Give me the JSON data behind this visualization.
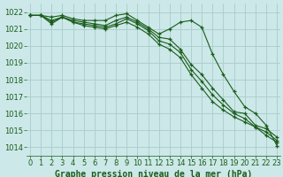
{
  "background_color": "#cce8e8",
  "grid_color": "#aacccc",
  "line_color": "#1a5c1a",
  "title": "Graphe pression niveau de la mer (hPa)",
  "title_fontsize": 7,
  "tick_fontsize": 6,
  "ylim": [
    1013.5,
    1022.5
  ],
  "xlim": [
    -0.3,
    23.3
  ],
  "yticks": [
    1014,
    1015,
    1016,
    1017,
    1018,
    1019,
    1020,
    1021,
    1022
  ],
  "xticks": [
    0,
    1,
    2,
    3,
    4,
    5,
    6,
    7,
    8,
    9,
    10,
    11,
    12,
    13,
    14,
    15,
    16,
    17,
    18,
    19,
    20,
    21,
    22,
    23
  ],
  "series": [
    [
      1021.8,
      1021.8,
      1021.7,
      1021.8,
      1021.6,
      1021.5,
      1021.5,
      1021.5,
      1021.8,
      1021.9,
      1021.5,
      1021.1,
      1020.7,
      1021.0,
      1021.4,
      1021.5,
      1021.1,
      1019.5,
      1018.3,
      1017.3,
      1016.4,
      1016.0,
      1015.3,
      1014.1
    ],
    [
      1021.8,
      1021.8,
      1021.4,
      1021.7,
      1021.5,
      1021.4,
      1021.3,
      1021.2,
      1021.5,
      1021.7,
      1021.4,
      1021.0,
      1020.5,
      1020.4,
      1019.8,
      1018.9,
      1018.3,
      1017.5,
      1016.8,
      1016.1,
      1016.0,
      1015.3,
      1015.1,
      1014.6
    ],
    [
      1021.8,
      1021.8,
      1021.3,
      1021.7,
      1021.4,
      1021.2,
      1021.1,
      1021.0,
      1021.2,
      1021.4,
      1021.1,
      1020.7,
      1020.1,
      1019.8,
      1019.3,
      1018.3,
      1017.5,
      1016.7,
      1016.2,
      1015.8,
      1015.5,
      1015.2,
      1014.7,
      1014.3
    ],
    [
      1021.8,
      1021.8,
      1021.5,
      1021.7,
      1021.4,
      1021.3,
      1021.2,
      1021.1,
      1021.3,
      1021.6,
      1021.3,
      1020.9,
      1020.3,
      1020.1,
      1019.6,
      1018.6,
      1017.9,
      1017.1,
      1016.5,
      1016.0,
      1015.7,
      1015.2,
      1014.9,
      1014.4
    ]
  ]
}
